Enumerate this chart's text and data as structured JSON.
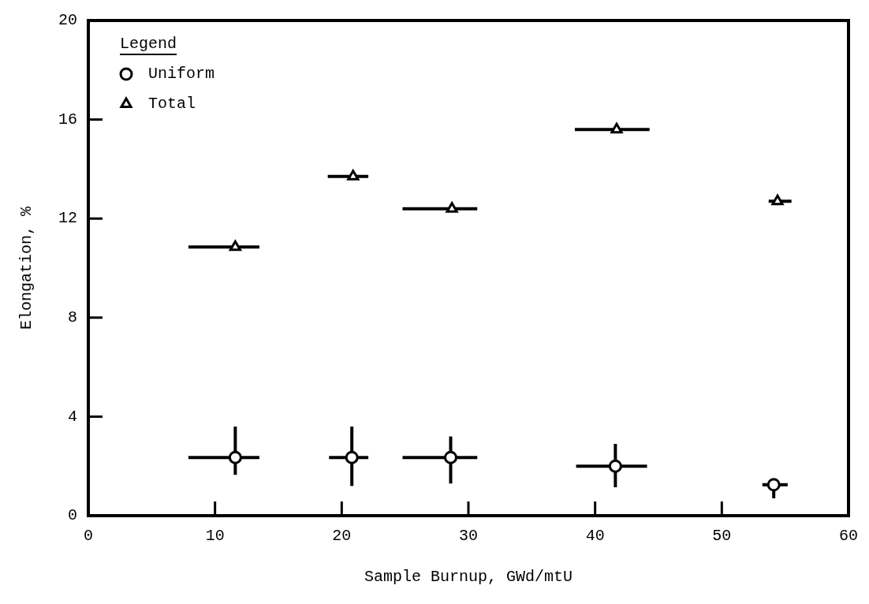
{
  "chart_data": {
    "type": "scatter",
    "xlabel": "Sample Burnup, GWd/mtU",
    "ylabel": "Elongation, %",
    "legend_title": "Legend",
    "legend": "top left",
    "grid": false,
    "xlim": [
      0,
      60
    ],
    "xticks": [
      0,
      10,
      20,
      30,
      40,
      50,
      60
    ],
    "ylim": [
      0,
      20
    ],
    "yticks": [
      0,
      4,
      8,
      12,
      16,
      20
    ],
    "series": [
      {
        "name": "Uniform",
        "color": "#000000",
        "marker": "circle",
        "x": [
          11.6,
          20.8,
          28.6,
          41.6,
          54.1
        ],
        "values": [
          2.35,
          2.35,
          2.35,
          2.0,
          1.25
        ],
        "errors": [
          [
            1.65,
            3.6
          ],
          [
            1.2,
            3.6
          ],
          [
            1.3,
            3.2
          ],
          [
            1.15,
            2.9
          ],
          [
            0.7,
            1.4
          ]
        ],
        "xerrors": [
          [
            7.9,
            13.5
          ],
          [
            19.0,
            22.1
          ],
          [
            24.8,
            30.7
          ],
          [
            38.5,
            44.1
          ],
          [
            53.2,
            55.2
          ]
        ]
      },
      {
        "name": "Total",
        "color": "#000000",
        "marker": "triangle",
        "x": [
          11.6,
          20.9,
          28.7,
          41.7,
          54.4
        ],
        "values": [
          10.85,
          13.7,
          12.4,
          15.6,
          12.7
        ],
        "xerrors": [
          [
            7.9,
            13.5
          ],
          [
            18.9,
            22.1
          ],
          [
            24.8,
            30.7
          ],
          [
            38.4,
            44.3
          ],
          [
            53.7,
            55.5
          ]
        ]
      }
    ]
  }
}
